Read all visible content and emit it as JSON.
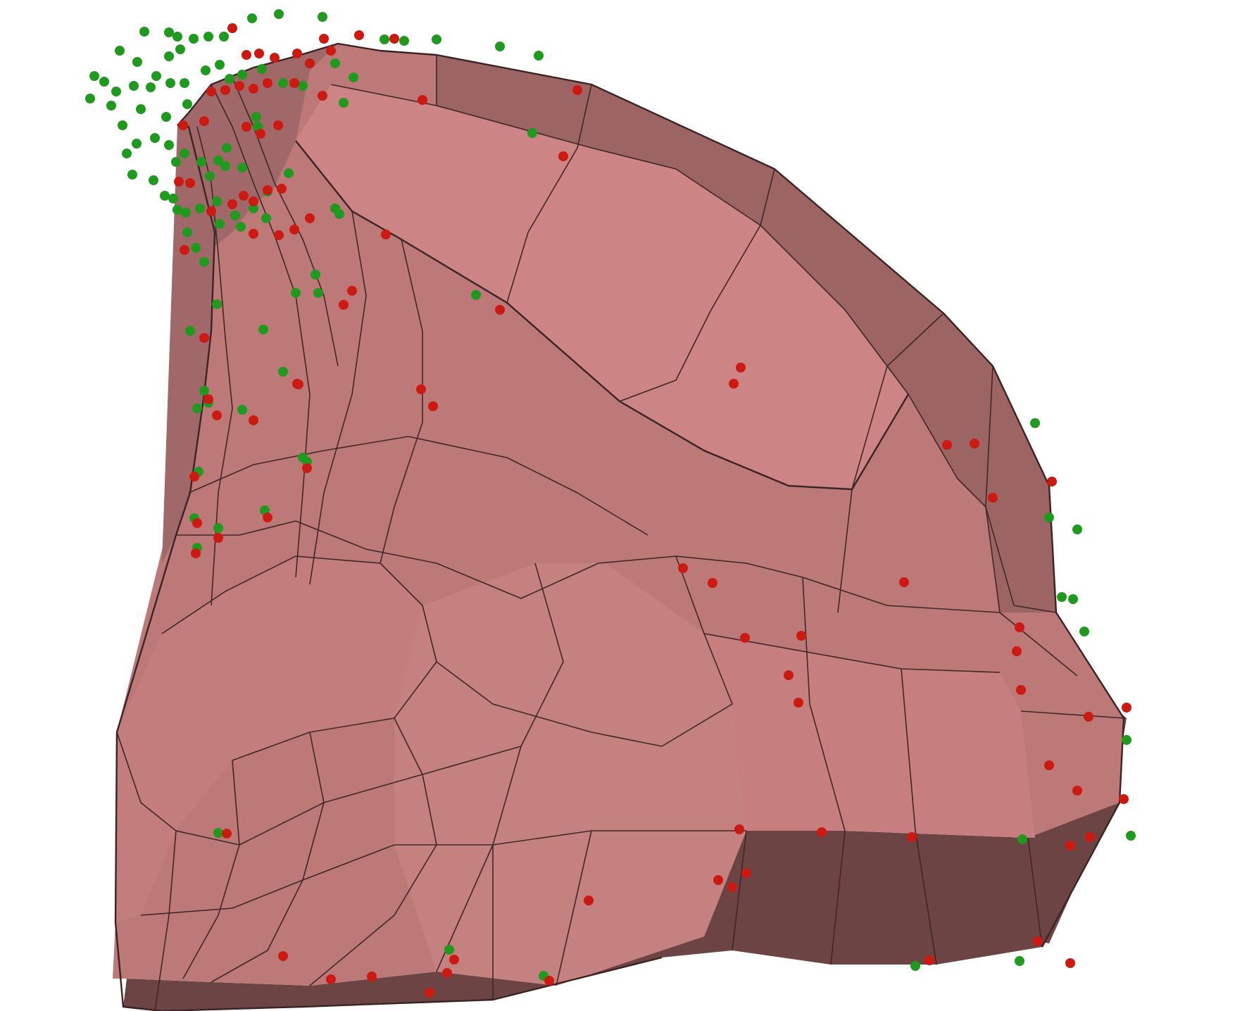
{
  "render": {
    "background": "#ffffff",
    "colors": {
      "mesh_top": "#c98080",
      "mesh_mid": "#b97575",
      "mesh_side": "#9c6464",
      "mesh_dark": "#6e4646",
      "mesh_edge": "#3e2828",
      "point_red": "#cc1a12",
      "point_green": "#1f9a1f"
    },
    "legend": "none",
    "axes": "none"
  },
  "points": {
    "red": [
      [
        330,
        40
      ],
      [
        350,
        78
      ],
      [
        368,
        76
      ],
      [
        390,
        82
      ],
      [
        422,
        76
      ],
      [
        440,
        90
      ],
      [
        470,
        72
      ],
      [
        510,
        50
      ],
      [
        560,
        55
      ],
      [
        460,
        55
      ],
      [
        320,
        128
      ],
      [
        340,
        122
      ],
      [
        360,
        126
      ],
      [
        380,
        118
      ],
      [
        300,
        130
      ],
      [
        418,
        118
      ],
      [
        458,
        136
      ],
      [
        600,
        142
      ],
      [
        820,
        128
      ],
      [
        260,
        178
      ],
      [
        290,
        172
      ],
      [
        350,
        180
      ],
      [
        370,
        190
      ],
      [
        395,
        178
      ],
      [
        254,
        258
      ],
      [
        270,
        260
      ],
      [
        300,
        300
      ],
      [
        330,
        290
      ],
      [
        360,
        286
      ],
      [
        380,
        270
      ],
      [
        400,
        268
      ],
      [
        418,
        326
      ],
      [
        440,
        310
      ],
      [
        548,
        333
      ],
      [
        360,
        332
      ],
      [
        396,
        334
      ],
      [
        290,
        480
      ],
      [
        500,
        413
      ],
      [
        488,
        433
      ],
      [
        422,
        545
      ],
      [
        800,
        222
      ],
      [
        710,
        440
      ],
      [
        615,
        577
      ],
      [
        598,
        553
      ],
      [
        296,
        567
      ],
      [
        308,
        590
      ],
      [
        360,
        597
      ],
      [
        424,
        546
      ],
      [
        436,
        665
      ],
      [
        276,
        677
      ],
      [
        280,
        743
      ],
      [
        310,
        764
      ],
      [
        278,
        786
      ],
      [
        380,
        735
      ],
      [
        1052,
        522
      ],
      [
        1042,
        545
      ],
      [
        970,
        807
      ],
      [
        1012,
        828
      ],
      [
        1284,
        827
      ],
      [
        1345,
        632
      ],
      [
        1384,
        630
      ],
      [
        1494,
        684
      ],
      [
        1410,
        707
      ],
      [
        1444,
        925
      ],
      [
        1450,
        980
      ],
      [
        1530,
        1123
      ],
      [
        1520,
        1201
      ],
      [
        1448,
        891
      ],
      [
        1490,
        1087
      ],
      [
        1546,
        1018
      ],
      [
        1600,
        1005
      ],
      [
        1596,
        1135
      ],
      [
        1058,
        906
      ],
      [
        1120,
        959
      ],
      [
        1138,
        903
      ],
      [
        1134,
        998
      ],
      [
        1050,
        1178
      ],
      [
        1167,
        1182
      ],
      [
        1295,
        1189
      ],
      [
        1548,
        1189
      ],
      [
        1320,
        1364
      ],
      [
        1520,
        1368
      ],
      [
        1474,
        1337
      ],
      [
        836,
        1279
      ],
      [
        780,
        1393
      ],
      [
        645,
        1363
      ],
      [
        635,
        1382
      ],
      [
        528,
        1387
      ],
      [
        402,
        1358
      ],
      [
        470,
        1391
      ],
      [
        262,
        355
      ],
      [
        346,
        278
      ],
      [
        322,
        1184
      ],
      [
        610,
        1410
      ],
      [
        1040,
        1260
      ],
      [
        1060,
        1240
      ],
      [
        1020,
        1250
      ]
    ],
    "green": [
      [
        358,
        26
      ],
      [
        396,
        20
      ],
      [
        458,
        24
      ],
      [
        205,
        45
      ],
      [
        240,
        46
      ],
      [
        252,
        52
      ],
      [
        275,
        55
      ],
      [
        296,
        52
      ],
      [
        256,
        70
      ],
      [
        318,
        52
      ],
      [
        240,
        80
      ],
      [
        170,
        72
      ],
      [
        195,
        88
      ],
      [
        134,
        108
      ],
      [
        148,
        116
      ],
      [
        128,
        140
      ],
      [
        165,
        130
      ],
      [
        190,
        122
      ],
      [
        214,
        124
      ],
      [
        222,
        108
      ],
      [
        242,
        118
      ],
      [
        262,
        118
      ],
      [
        292,
        100
      ],
      [
        312,
        92
      ],
      [
        326,
        112
      ],
      [
        344,
        106
      ],
      [
        372,
        98
      ],
      [
        402,
        118
      ],
      [
        430,
        122
      ],
      [
        476,
        90
      ],
      [
        502,
        110
      ],
      [
        488,
        146
      ],
      [
        546,
        56
      ],
      [
        574,
        58
      ],
      [
        620,
        56
      ],
      [
        710,
        66
      ],
      [
        765,
        79
      ],
      [
        174,
        178
      ],
      [
        200,
        155
      ],
      [
        236,
        166
      ],
      [
        266,
        148
      ],
      [
        180,
        218
      ],
      [
        194,
        204
      ],
      [
        220,
        196
      ],
      [
        240,
        206
      ],
      [
        250,
        230
      ],
      [
        262,
        218
      ],
      [
        286,
        230
      ],
      [
        310,
        228
      ],
      [
        298,
        250
      ],
      [
        320,
        236
      ],
      [
        322,
        210
      ],
      [
        344,
        238
      ],
      [
        364,
        166
      ],
      [
        366,
        180
      ],
      [
        158,
        150
      ],
      [
        188,
        248
      ],
      [
        218,
        256
      ],
      [
        234,
        278
      ],
      [
        246,
        282
      ],
      [
        252,
        298
      ],
      [
        264,
        302
      ],
      [
        284,
        296
      ],
      [
        300,
        300
      ],
      [
        308,
        286
      ],
      [
        312,
        318
      ],
      [
        334,
        306
      ],
      [
        342,
        322
      ],
      [
        360,
        296
      ],
      [
        378,
        310
      ],
      [
        380,
        272
      ],
      [
        410,
        246
      ],
      [
        476,
        296
      ],
      [
        482,
        304
      ],
      [
        448,
        390
      ],
      [
        452,
        416
      ],
      [
        420,
        416
      ],
      [
        266,
        330
      ],
      [
        278,
        352
      ],
      [
        290,
        372
      ],
      [
        308,
        432
      ],
      [
        270,
        470
      ],
      [
        374,
        468
      ],
      [
        402,
        528
      ],
      [
        290,
        555
      ],
      [
        280,
        580
      ],
      [
        296,
        572
      ],
      [
        344,
        582
      ],
      [
        430,
        650
      ],
      [
        436,
        656
      ],
      [
        282,
        670
      ],
      [
        276,
        736
      ],
      [
        376,
        725
      ],
      [
        310,
        750
      ],
      [
        280,
        778
      ],
      [
        756,
        189
      ],
      [
        676,
        419
      ],
      [
        1470,
        601
      ],
      [
        1530,
        752
      ],
      [
        1490,
        735
      ],
      [
        1524,
        851
      ],
      [
        1508,
        848
      ],
      [
        1540,
        897
      ],
      [
        1600,
        1051
      ],
      [
        1606,
        1187
      ],
      [
        1452,
        1192
      ],
      [
        1448,
        1365
      ],
      [
        1300,
        1372
      ],
      [
        638,
        1349
      ],
      [
        772,
        1386
      ],
      [
        310,
        1183
      ]
    ]
  }
}
